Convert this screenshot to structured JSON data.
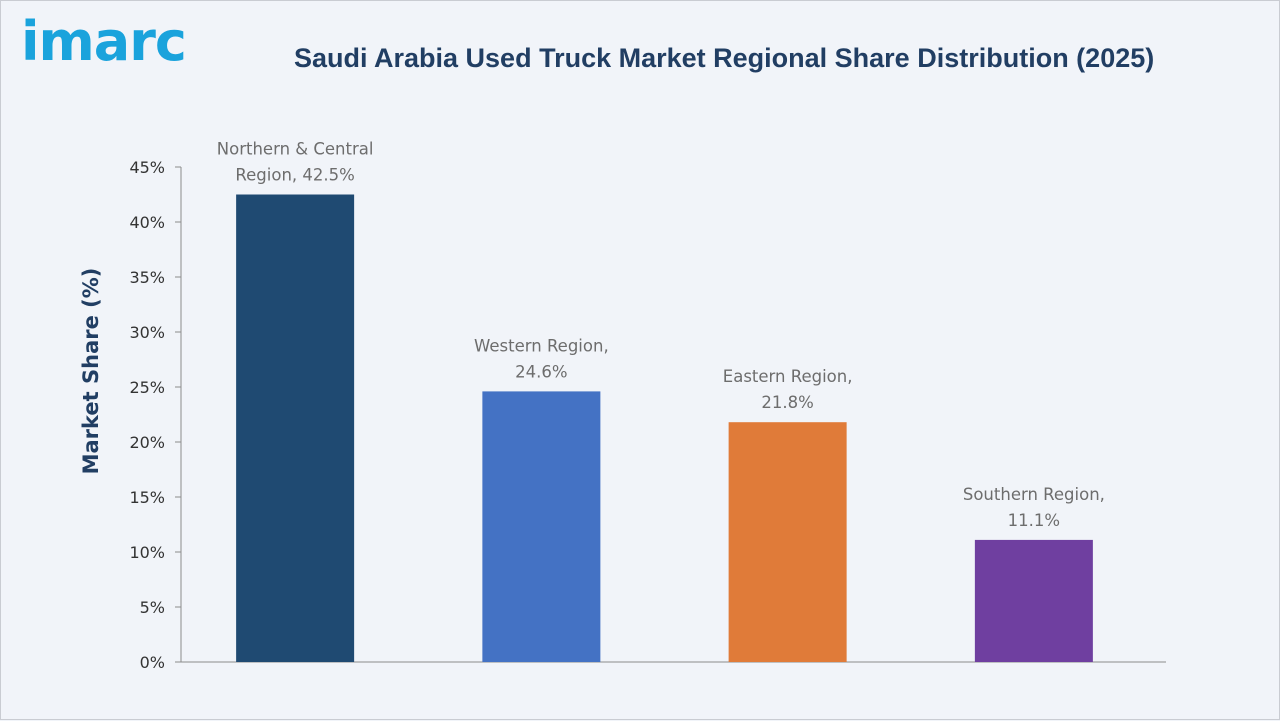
{
  "logo": {
    "text": "imarc"
  },
  "chart_data": {
    "type": "bar",
    "title": "Saudi Arabia Used Truck Market Regional Share Distribution (2025)",
    "xlabel": "",
    "ylabel": "Market Share (%)",
    "ylim": [
      0,
      45
    ],
    "yticks": [
      0,
      5,
      10,
      15,
      20,
      25,
      30,
      35,
      40,
      45
    ],
    "ytick_labels": [
      "0%",
      "5%",
      "10%",
      "15%",
      "20%",
      "25%",
      "30%",
      "35%",
      "40%",
      "45%"
    ],
    "grid": false,
    "legend": "none",
    "categories": [
      "Northern & Central Region",
      "Western Region",
      "Eastern Region",
      "Southern Region"
    ],
    "values": [
      42.5,
      24.6,
      21.8,
      11.1
    ],
    "data_labels": [
      [
        "Northern & Central",
        "Region, 42.5%"
      ],
      [
        "Western Region,",
        "24.6%"
      ],
      [
        "Eastern Region,",
        "21.8%"
      ],
      [
        "Southern Region,",
        "11.1%"
      ]
    ],
    "colors": [
      "#1f4a72",
      "#4472c4",
      "#e07b39",
      "#6f3fa0"
    ]
  }
}
